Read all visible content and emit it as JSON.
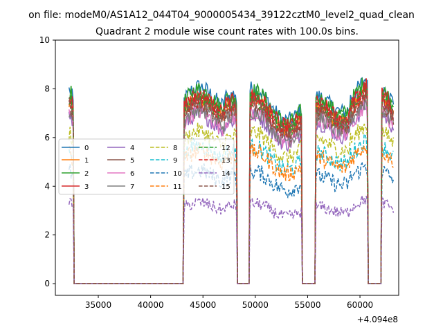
{
  "chart_data": {
    "type": "line",
    "suptitle": "on file: modeM0/AS1A12_044T04_9000005434_39122cztM0_level2_quad_clean",
    "title": "Quadrant 2 module wise count rates with 100.0s bins.",
    "xlabel": "",
    "ylabel": "",
    "offset_text": "+4.094e8",
    "x_offset": 409400000,
    "xlim": [
      30900,
      63700
    ],
    "ylim": [
      -0.48,
      10.0
    ],
    "xticks": [
      35000,
      40000,
      45000,
      50000,
      55000,
      60000
    ],
    "yticks": [
      0,
      2,
      4,
      6,
      8,
      10
    ],
    "x_start": 32200,
    "x_end": 63200,
    "bin": 100,
    "segments": [
      [
        32200,
        32600
      ],
      [
        43200,
        48200
      ],
      [
        49500,
        54400
      ],
      [
        55800,
        60700
      ],
      [
        62100,
        63200
      ]
    ],
    "legend": {
      "position": "center-left",
      "ncol": 4
    },
    "series": [
      {
        "name": "0",
        "color": "#1f77b4",
        "dash": "solid",
        "level": 8.0
      },
      {
        "name": "1",
        "color": "#ff7f0e",
        "dash": "solid",
        "level": 7.5
      },
      {
        "name": "2",
        "color": "#2ca02c",
        "dash": "solid",
        "level": 7.9
      },
      {
        "name": "3",
        "color": "#d62728",
        "dash": "solid",
        "level": 7.7
      },
      {
        "name": "4",
        "color": "#9467bd",
        "dash": "solid",
        "level": 6.9
      },
      {
        "name": "5",
        "color": "#8c564b",
        "dash": "solid",
        "level": 7.4
      },
      {
        "name": "6",
        "color": "#e377c2",
        "dash": "solid",
        "level": 7.0
      },
      {
        "name": "7",
        "color": "#7f7f7f",
        "dash": "solid",
        "level": 7.1
      },
      {
        "name": "8",
        "color": "#bcbd22",
        "dash": "dashed",
        "level": 6.2
      },
      {
        "name": "9",
        "color": "#17becf",
        "dash": "dashed",
        "level": 5.6
      },
      {
        "name": "10",
        "color": "#1f77b4",
        "dash": "dashed",
        "level": 4.6
      },
      {
        "name": "11",
        "color": "#ff7f0e",
        "dash": "dashed",
        "level": 5.4
      },
      {
        "name": "12",
        "color": "#2ca02c",
        "dash": "dashed",
        "level": 7.6
      },
      {
        "name": "13",
        "color": "#d62728",
        "dash": "dashed",
        "level": 7.5
      },
      {
        "name": "14",
        "color": "#9467bd",
        "dash": "dashed",
        "level": 3.3
      },
      {
        "name": "15",
        "color": "#8c564b",
        "dash": "dashed",
        "level": 7.3
      }
    ]
  }
}
